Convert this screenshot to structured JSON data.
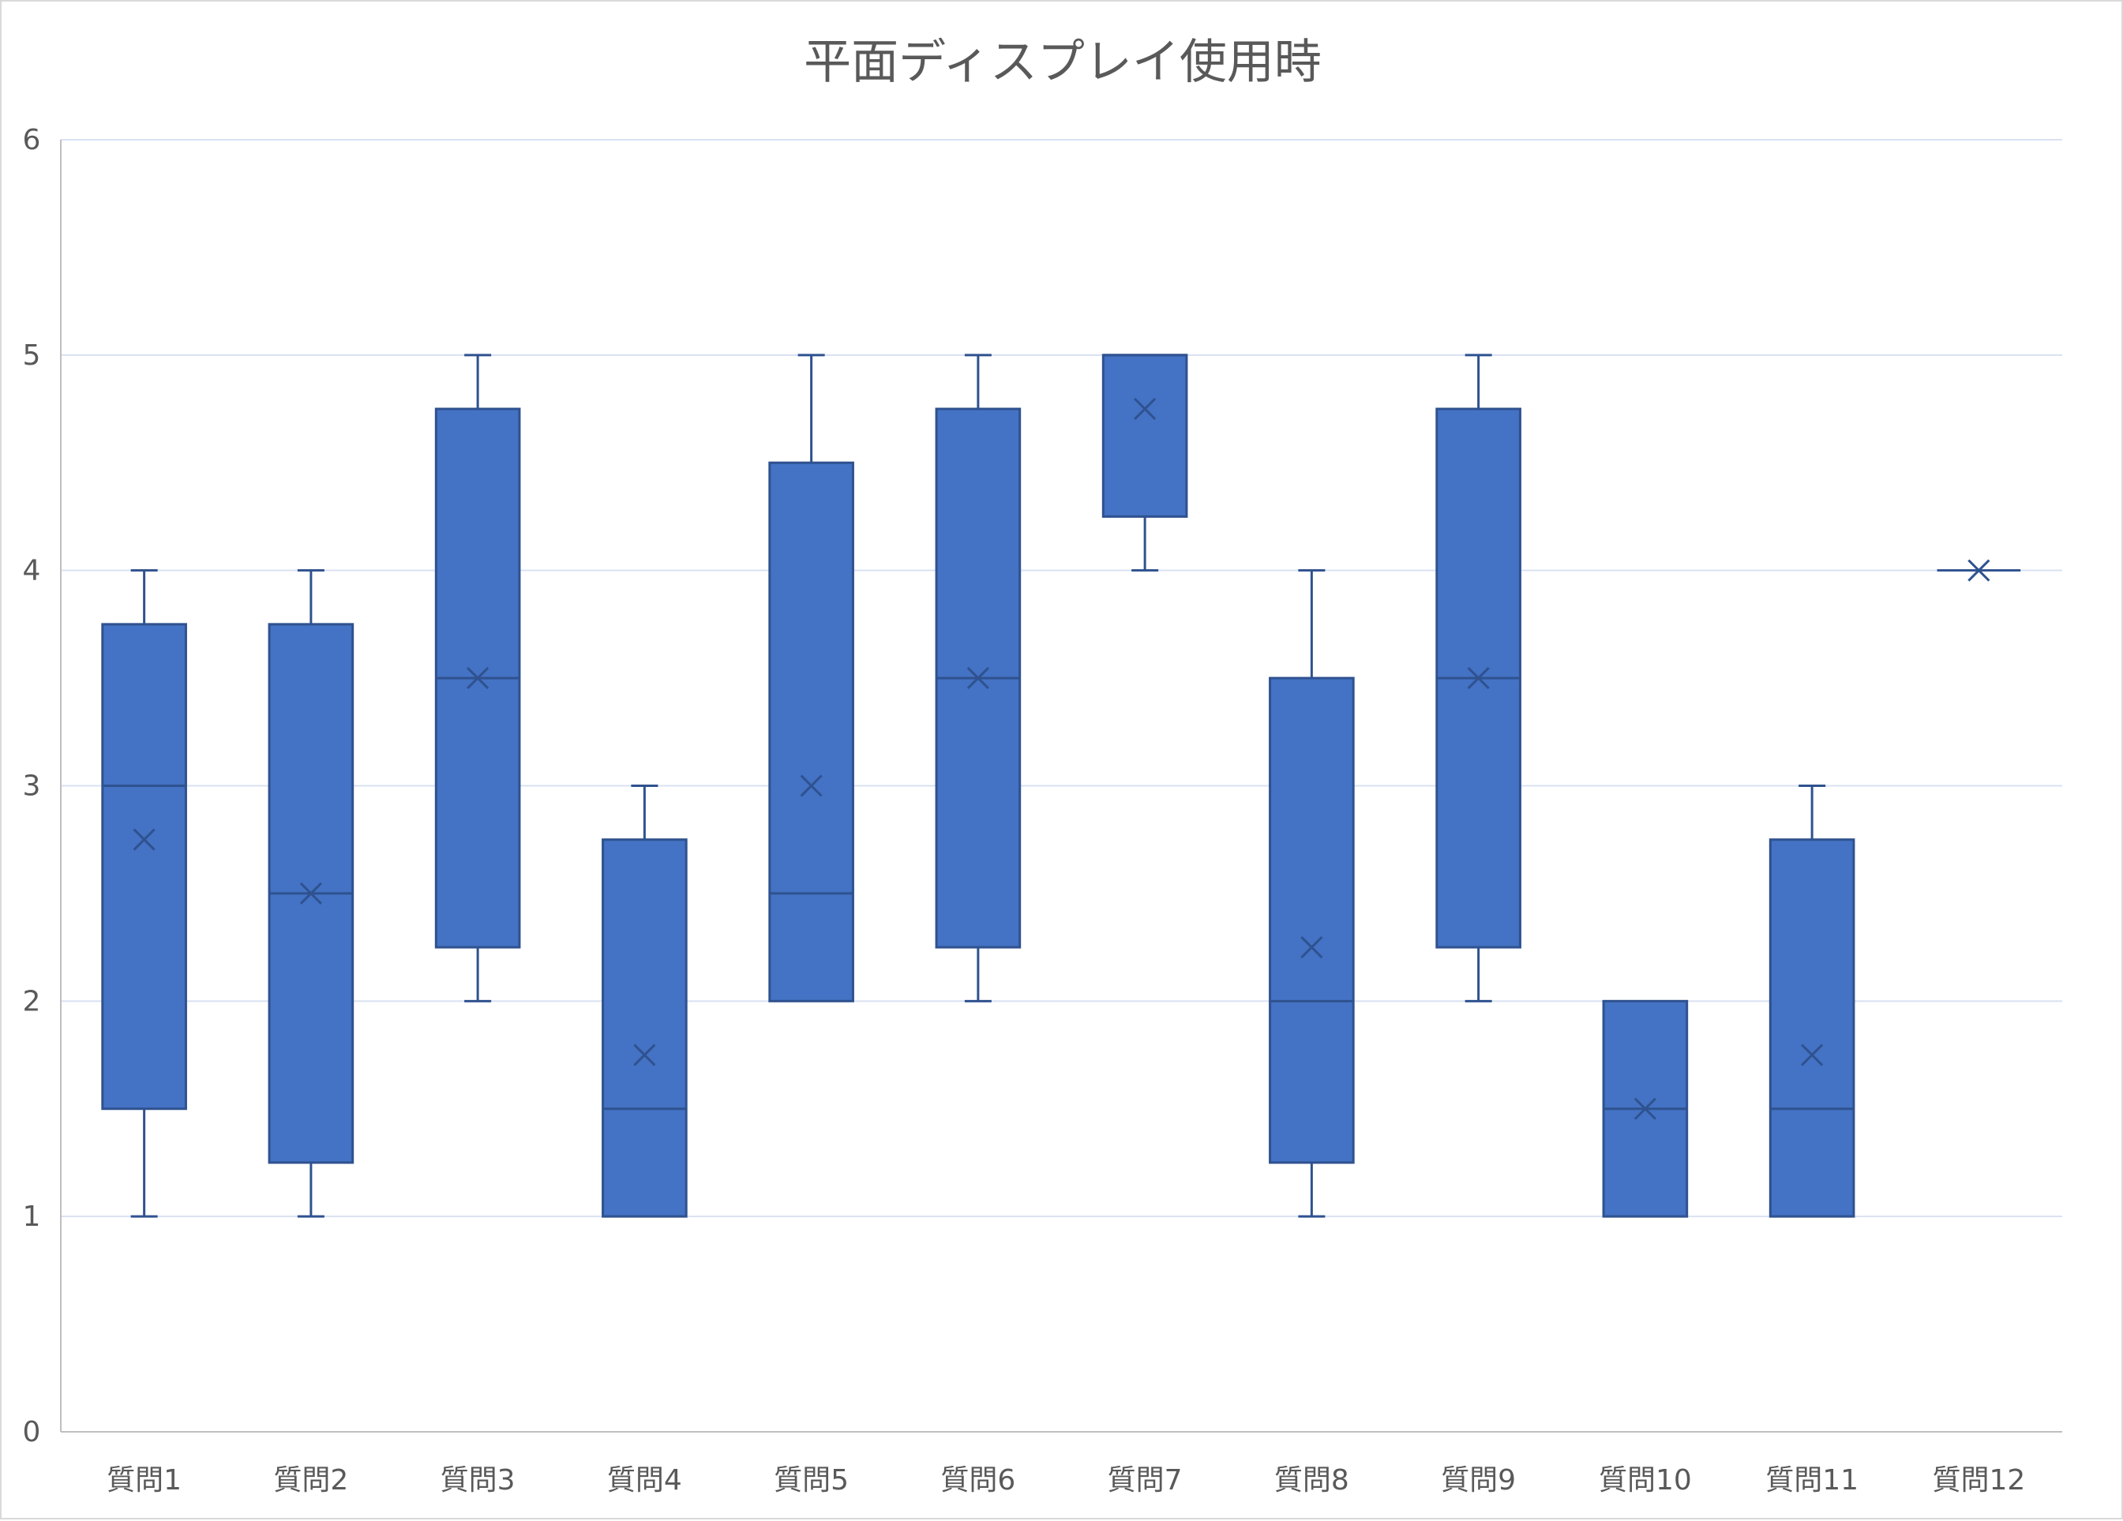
{
  "chart_data": {
    "type": "boxplot",
    "title": "平面ディスプレイ使用時",
    "xlabel": "",
    "ylabel": "",
    "ylim": [
      0,
      6
    ],
    "yticks": [
      0,
      1,
      2,
      3,
      4,
      5,
      6
    ],
    "grid": true,
    "legend": "none",
    "colors": {
      "box_fill": "#4472C4",
      "box_stroke": "#2F528F",
      "grid": "#D9E1F2",
      "axis": "#BFBFBF",
      "text": "#595959"
    },
    "categories": [
      "質問1",
      "質問2",
      "質問3",
      "質問4",
      "質問5",
      "質問6",
      "質問7",
      "質問8",
      "質問9",
      "質問10",
      "質問11",
      "質問12"
    ],
    "boxes": [
      {
        "category": "質問1",
        "min": 1,
        "q1": 1.5,
        "median": 3,
        "q3": 3.75,
        "max": 4,
        "mean": 2.75
      },
      {
        "category": "質問2",
        "min": 1,
        "q1": 1.25,
        "median": 2.5,
        "q3": 3.75,
        "max": 4,
        "mean": 2.5
      },
      {
        "category": "質問3",
        "min": 2,
        "q1": 2.25,
        "median": 3.5,
        "q3": 4.75,
        "max": 5,
        "mean": 3.5
      },
      {
        "category": "質問4",
        "min": 1,
        "q1": 1,
        "median": 1.5,
        "q3": 2.75,
        "max": 3,
        "mean": 1.75
      },
      {
        "category": "質問5",
        "min": 2,
        "q1": 2,
        "median": 2.5,
        "q3": 4.5,
        "max": 5,
        "mean": 3
      },
      {
        "category": "質問6",
        "min": 2,
        "q1": 2.25,
        "median": 3.5,
        "q3": 4.75,
        "max": 5,
        "mean": 3.5
      },
      {
        "category": "質問7",
        "min": 4,
        "q1": 4.25,
        "median": 5,
        "q3": 5,
        "max": 5,
        "mean": 4.75
      },
      {
        "category": "質問8",
        "min": 1,
        "q1": 1.25,
        "median": 2,
        "q3": 3.5,
        "max": 4,
        "mean": 2.25
      },
      {
        "category": "質問9",
        "min": 2,
        "q1": 2.25,
        "median": 3.5,
        "q3": 4.75,
        "max": 5,
        "mean": 3.5
      },
      {
        "category": "質問10",
        "min": 1,
        "q1": 1,
        "median": 1.5,
        "q3": 2,
        "max": 2,
        "mean": 1.5
      },
      {
        "category": "質問11",
        "min": 1,
        "q1": 1,
        "median": 1.5,
        "q3": 2.75,
        "max": 3,
        "mean": 1.75
      },
      {
        "category": "質問12",
        "min": 4,
        "q1": 4,
        "median": 4,
        "q3": 4,
        "max": 4,
        "mean": 4
      }
    ]
  }
}
